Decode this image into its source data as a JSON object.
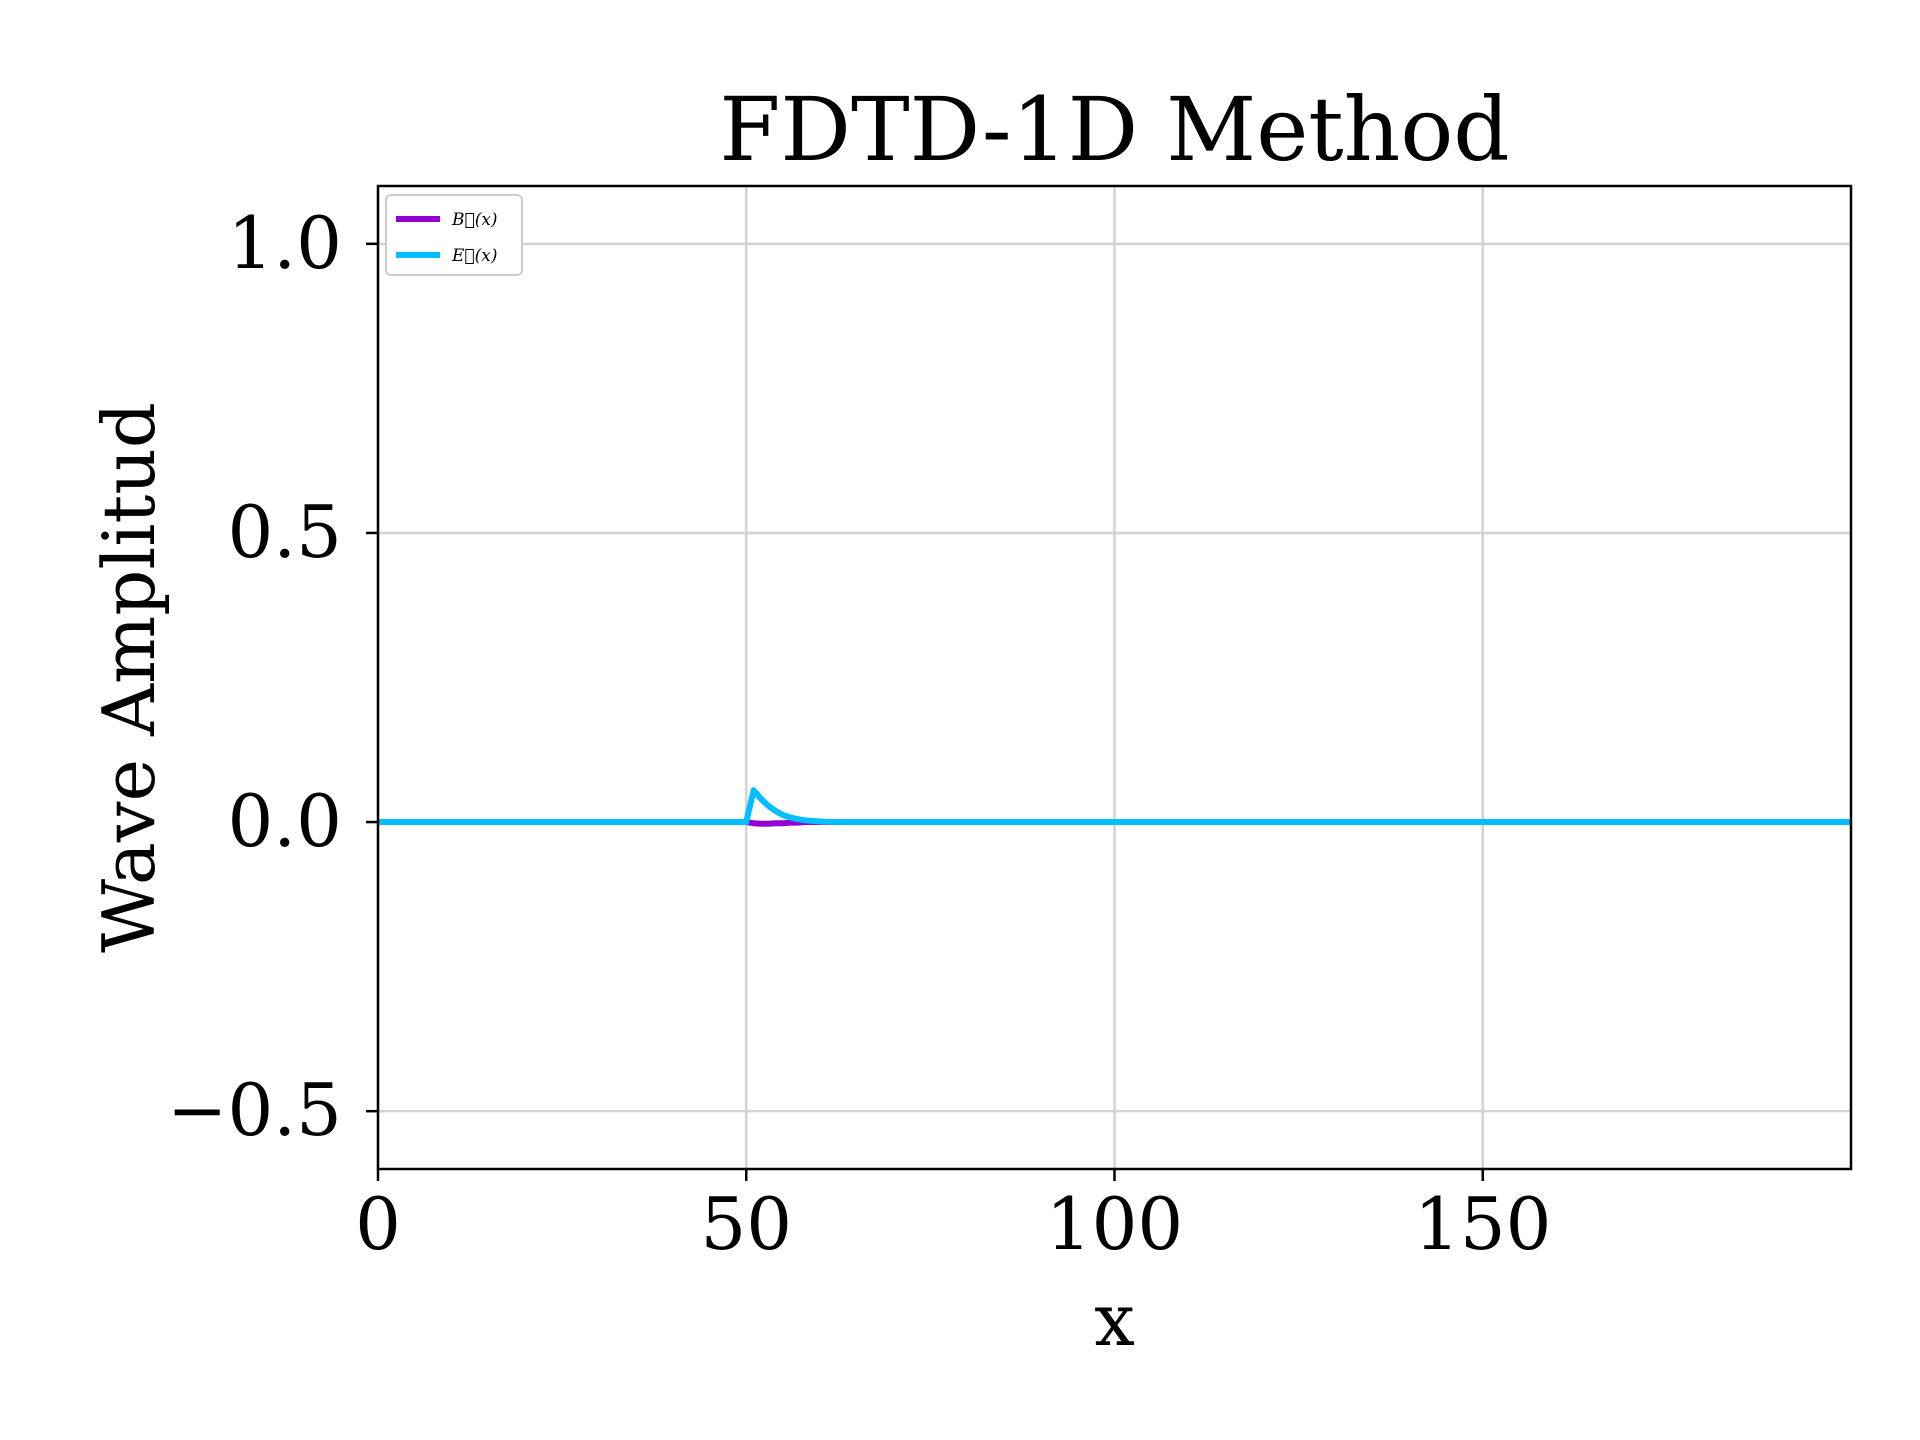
{
  "chart_data": {
    "type": "line",
    "title": "FDTD-1D Method",
    "xlabel": "x",
    "ylabel": "Wave Amplitud",
    "xlim": [
      0,
      200
    ],
    "ylim": [
      -0.6,
      1.1
    ],
    "xticks": [
      0,
      50,
      100,
      150
    ],
    "xtick_labels": [
      "0",
      "50",
      "100",
      "150"
    ],
    "yticks": [
      -0.5,
      0.0,
      0.5,
      1.0
    ],
    "ytick_labels": [
      "−0.5",
      "0.0",
      "0.5",
      "1.0"
    ],
    "grid": true,
    "legend_position": "top-left",
    "series": [
      {
        "name": "B⃗(x)",
        "color": "#9400D3",
        "x": [
          0,
          50,
          51,
          52,
          53,
          54,
          55,
          56,
          57,
          58,
          60,
          62,
          200
        ],
        "y": [
          0,
          0,
          -0.002,
          -0.003,
          -0.003,
          -0.002,
          -0.002,
          -0.001,
          -0.001,
          0,
          0,
          0,
          0
        ]
      },
      {
        "name": "E⃗(x)",
        "color": "#00BFFF",
        "x": [
          0,
          50,
          51,
          52,
          53,
          54,
          55,
          56,
          57,
          58,
          60,
          62,
          65,
          200
        ],
        "y": [
          0,
          0,
          0.055,
          0.04,
          0.028,
          0.019,
          0.012,
          0.008,
          0.005,
          0.003,
          0.001,
          0,
          0,
          0
        ]
      }
    ]
  }
}
